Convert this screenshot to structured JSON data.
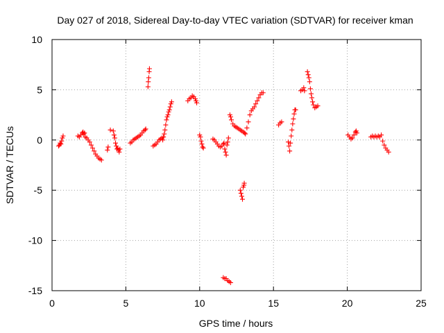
{
  "chart_data": {
    "type": "scatter",
    "title": "Day 027 of 2018, Sidereal Day-to-day VTEC variation (SDTVAR) for receiver kman",
    "xlabel": "GPS time / hours",
    "ylabel": "SDTVAR / TECUs",
    "xlim": [
      0,
      25
    ],
    "ylim": [
      -15,
      10
    ],
    "xticks": [
      0,
      5,
      10,
      15,
      20,
      25
    ],
    "yticks": [
      -15,
      -10,
      -5,
      0,
      5,
      10
    ],
    "xtick_labels": [
      "0",
      "5",
      "10",
      "15",
      "20",
      "25"
    ],
    "ytick_labels": [
      "-15",
      "-10",
      "-5",
      "0",
      "5",
      "10"
    ],
    "grid": true,
    "marker": "+",
    "color": "#ff0000",
    "series": [
      {
        "name": "SDTVAR",
        "points": [
          [
            0.45,
            -0.6
          ],
          [
            0.5,
            -0.5
          ],
          [
            0.55,
            -0.3
          ],
          [
            0.6,
            -0.4
          ],
          [
            0.65,
            -0.1
          ],
          [
            0.7,
            0.2
          ],
          [
            0.75,
            0.4
          ],
          [
            1.75,
            0.4
          ],
          [
            1.85,
            0.3
          ],
          [
            1.95,
            0.5
          ],
          [
            2.05,
            0.7
          ],
          [
            2.1,
            0.8
          ],
          [
            2.15,
            0.6
          ],
          [
            2.2,
            0.7
          ],
          [
            2.25,
            0.3
          ],
          [
            2.35,
            0.2
          ],
          [
            2.45,
            0.0
          ],
          [
            2.55,
            -0.2
          ],
          [
            2.65,
            -0.5
          ],
          [
            2.75,
            -0.8
          ],
          [
            2.85,
            -1.1
          ],
          [
            2.95,
            -1.4
          ],
          [
            3.05,
            -1.6
          ],
          [
            3.15,
            -1.8
          ],
          [
            3.25,
            -1.9
          ],
          [
            3.35,
            -2.0
          ],
          [
            3.75,
            -1.0
          ],
          [
            3.8,
            -0.7
          ],
          [
            3.95,
            1.0
          ],
          [
            4.15,
            0.9
          ],
          [
            4.2,
            0.5
          ],
          [
            4.25,
            0.2
          ],
          [
            4.3,
            -0.3
          ],
          [
            4.35,
            -0.6
          ],
          [
            4.4,
            -0.9
          ],
          [
            4.45,
            -0.8
          ],
          [
            4.5,
            -1.0
          ],
          [
            4.55,
            -1.2
          ],
          [
            4.6,
            -0.9
          ],
          [
            5.3,
            -0.3
          ],
          [
            5.4,
            -0.2
          ],
          [
            5.5,
            0.0
          ],
          [
            5.6,
            0.1
          ],
          [
            5.7,
            0.2
          ],
          [
            5.8,
            0.3
          ],
          [
            5.9,
            0.4
          ],
          [
            6.0,
            0.5
          ],
          [
            6.1,
            0.7
          ],
          [
            6.2,
            0.9
          ],
          [
            6.3,
            1.0
          ],
          [
            6.35,
            1.1
          ],
          [
            6.5,
            5.3
          ],
          [
            6.52,
            5.8
          ],
          [
            6.55,
            6.2
          ],
          [
            6.58,
            6.8
          ],
          [
            6.6,
            7.1
          ],
          [
            6.85,
            -0.6
          ],
          [
            6.95,
            -0.5
          ],
          [
            7.05,
            -0.4
          ],
          [
            7.15,
            -0.2
          ],
          [
            7.25,
            0.0
          ],
          [
            7.35,
            0.1
          ],
          [
            7.45,
            0.2
          ],
          [
            7.5,
            0.0
          ],
          [
            7.55,
            0.3
          ],
          [
            7.6,
            0.6
          ],
          [
            7.65,
            1.0
          ],
          [
            7.7,
            1.5
          ],
          [
            7.75,
            2.0
          ],
          [
            7.8,
            2.3
          ],
          [
            7.85,
            2.5
          ],
          [
            7.9,
            2.8
          ],
          [
            7.95,
            3.0
          ],
          [
            8.0,
            3.3
          ],
          [
            8.05,
            3.6
          ],
          [
            8.1,
            3.8
          ],
          [
            9.2,
            3.9
          ],
          [
            9.3,
            4.1
          ],
          [
            9.4,
            4.2
          ],
          [
            9.5,
            4.4
          ],
          [
            9.6,
            4.3
          ],
          [
            9.7,
            4.1
          ],
          [
            9.75,
            3.9
          ],
          [
            9.8,
            3.7
          ],
          [
            10.0,
            0.5
          ],
          [
            10.05,
            0.3
          ],
          [
            10.1,
            -0.1
          ],
          [
            10.15,
            -0.4
          ],
          [
            10.2,
            -0.7
          ],
          [
            10.25,
            -0.8
          ],
          [
            10.9,
            0.1
          ],
          [
            11.0,
            0.0
          ],
          [
            11.1,
            -0.2
          ],
          [
            11.2,
            -0.4
          ],
          [
            11.3,
            -0.6
          ],
          [
            11.4,
            -0.7
          ],
          [
            11.5,
            -0.6
          ],
          [
            11.6,
            -0.4
          ],
          [
            11.65,
            -0.3
          ],
          [
            11.6,
            -13.7
          ],
          [
            11.7,
            -13.8
          ],
          [
            11.8,
            -13.8
          ],
          [
            11.9,
            -14.0
          ],
          [
            12.0,
            -14.1
          ],
          [
            12.1,
            -14.2
          ],
          [
            11.7,
            -0.9
          ],
          [
            11.75,
            -1.2
          ],
          [
            11.8,
            -1.5
          ],
          [
            11.85,
            -0.5
          ],
          [
            11.9,
            -0.2
          ],
          [
            11.95,
            0.2
          ],
          [
            12.05,
            2.5
          ],
          [
            12.1,
            2.3
          ],
          [
            12.15,
            2.0
          ],
          [
            12.25,
            1.6
          ],
          [
            12.35,
            1.4
          ],
          [
            12.45,
            1.3
          ],
          [
            12.55,
            1.2
          ],
          [
            12.65,
            1.1
          ],
          [
            12.75,
            1.0
          ],
          [
            12.85,
            0.9
          ],
          [
            12.95,
            0.8
          ],
          [
            13.05,
            0.7
          ],
          [
            13.1,
            0.6
          ],
          [
            12.75,
            -5.0
          ],
          [
            12.8,
            -5.3
          ],
          [
            12.85,
            -5.6
          ],
          [
            12.9,
            -5.9
          ],
          [
            12.95,
            -4.7
          ],
          [
            13.0,
            -4.5
          ],
          [
            13.02,
            -4.3
          ],
          [
            13.2,
            1.2
          ],
          [
            13.3,
            1.8
          ],
          [
            13.4,
            2.5
          ],
          [
            13.5,
            2.9
          ],
          [
            13.6,
            3.1
          ],
          [
            13.7,
            3.3
          ],
          [
            13.8,
            3.6
          ],
          [
            13.9,
            3.9
          ],
          [
            14.0,
            4.2
          ],
          [
            14.1,
            4.5
          ],
          [
            14.2,
            4.7
          ],
          [
            14.3,
            4.7
          ],
          [
            15.35,
            1.5
          ],
          [
            15.45,
            1.7
          ],
          [
            15.55,
            1.8
          ],
          [
            16.0,
            -0.2
          ],
          [
            16.05,
            -0.6
          ],
          [
            16.1,
            -1.1
          ],
          [
            16.15,
            -0.3
          ],
          [
            16.2,
            0.4
          ],
          [
            16.25,
            1.0
          ],
          [
            16.3,
            1.6
          ],
          [
            16.35,
            2.1
          ],
          [
            16.4,
            2.6
          ],
          [
            16.45,
            3.0
          ],
          [
            16.5,
            3.0
          ],
          [
            16.85,
            4.9
          ],
          [
            16.95,
            5.0
          ],
          [
            17.05,
            5.2
          ],
          [
            17.1,
            4.9
          ],
          [
            17.3,
            6.8
          ],
          [
            17.35,
            6.5
          ],
          [
            17.4,
            6.2
          ],
          [
            17.45,
            5.8
          ],
          [
            17.5,
            5.1
          ],
          [
            17.55,
            4.6
          ],
          [
            17.6,
            4.2
          ],
          [
            17.65,
            3.8
          ],
          [
            17.7,
            3.5
          ],
          [
            17.8,
            3.2
          ],
          [
            17.9,
            3.3
          ],
          [
            18.0,
            3.4
          ],
          [
            20.05,
            0.5
          ],
          [
            20.15,
            0.3
          ],
          [
            20.25,
            0.1
          ],
          [
            20.35,
            0.2
          ],
          [
            20.45,
            0.5
          ],
          [
            20.55,
            0.8
          ],
          [
            20.6,
            0.9
          ],
          [
            20.65,
            0.7
          ],
          [
            21.6,
            0.3
          ],
          [
            21.7,
            0.4
          ],
          [
            21.8,
            0.3
          ],
          [
            21.9,
            0.4
          ],
          [
            22.0,
            0.3
          ],
          [
            22.1,
            0.4
          ],
          [
            22.2,
            0.3
          ],
          [
            22.3,
            0.5
          ],
          [
            22.4,
            -0.1
          ],
          [
            22.5,
            -0.5
          ],
          [
            22.6,
            -0.8
          ],
          [
            22.7,
            -1.0
          ],
          [
            22.8,
            -1.2
          ]
        ]
      }
    ]
  }
}
